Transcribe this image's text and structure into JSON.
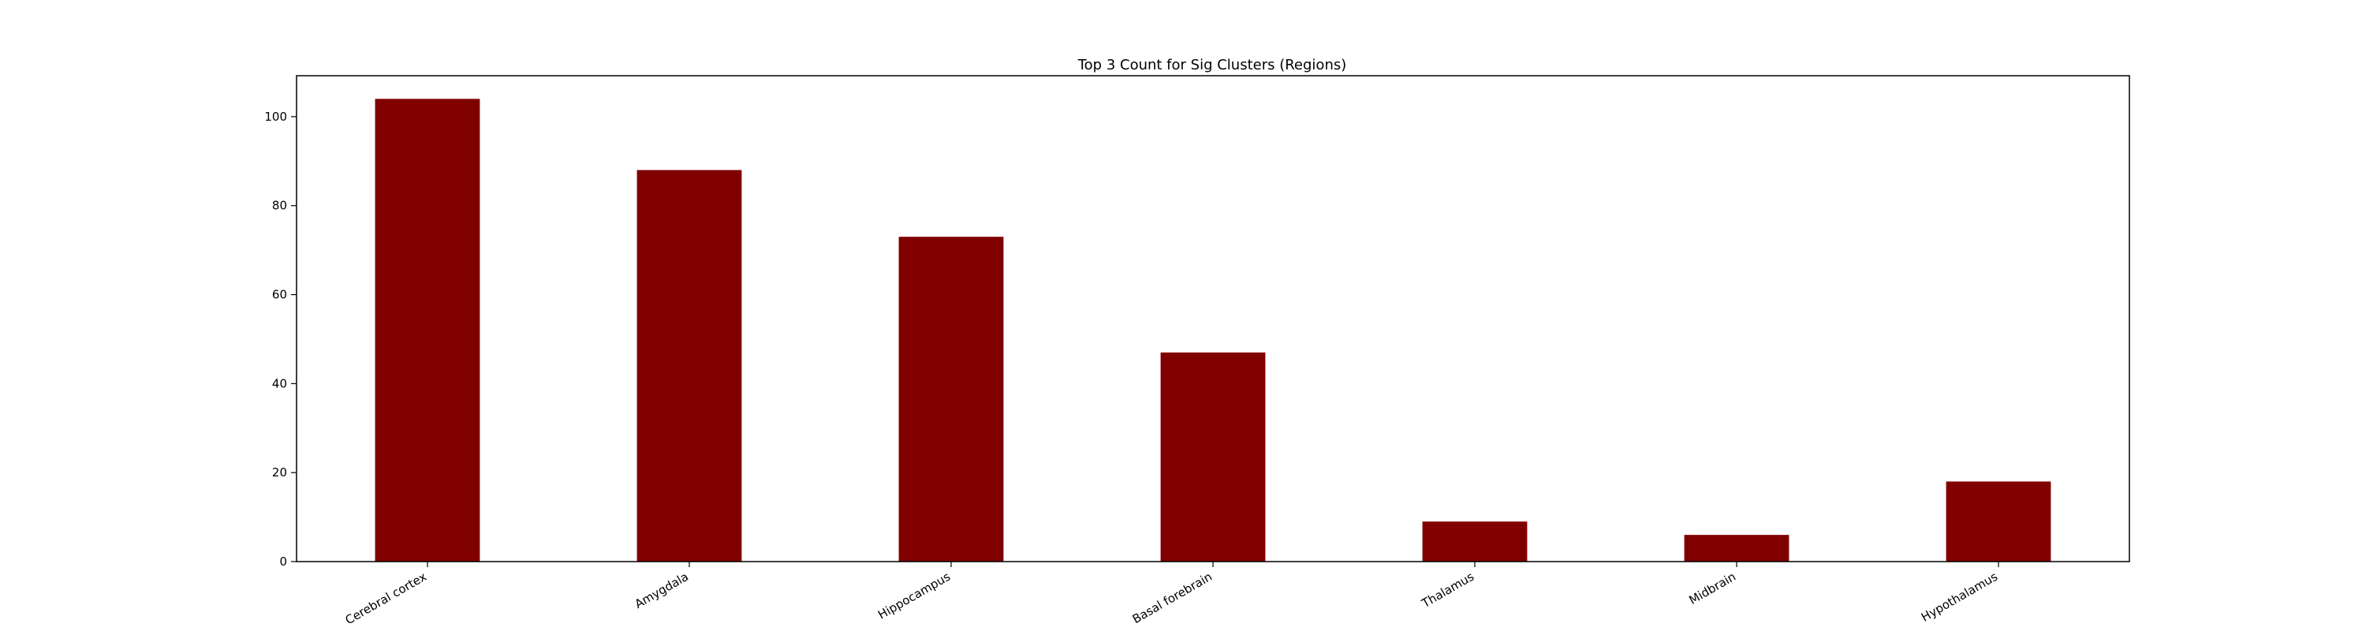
{
  "chart_data": {
    "type": "bar",
    "title": "Top 3 Count for Sig Clusters (Regions)",
    "xlabel": "",
    "ylabel": "",
    "categories": [
      "Cerebral cortex",
      "Amygdala",
      "Hippocampus",
      "Basal forebrain",
      "Thalamus",
      "Midbrain",
      "Hypothalamus"
    ],
    "values": [
      104,
      88,
      73,
      47,
      9,
      6,
      18
    ],
    "ylim": [
      0,
      109.2
    ],
    "yticks": [
      0,
      20,
      40,
      60,
      80,
      100
    ],
    "bar_color": "#800000",
    "grid": false,
    "legend": "none",
    "x_tick_rotation": "30 degrees, right-aligned"
  }
}
